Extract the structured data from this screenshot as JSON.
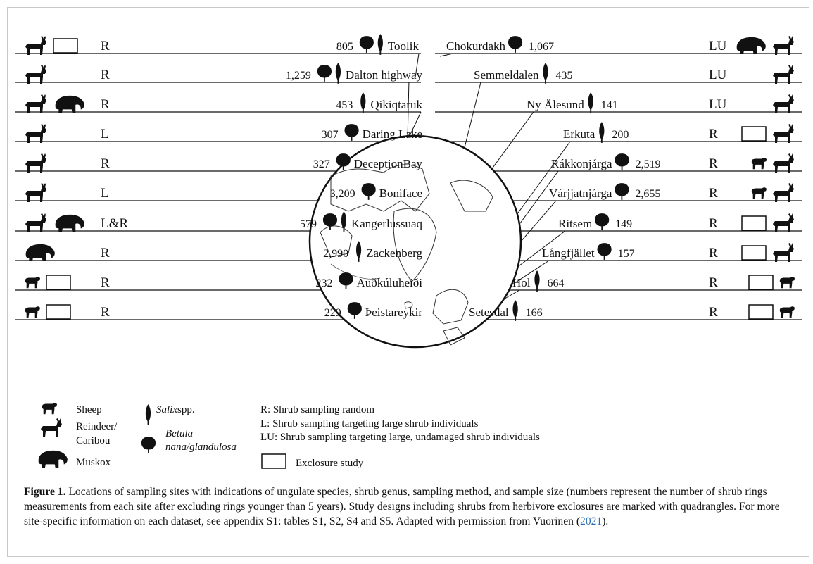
{
  "left_sites": [
    {
      "grazers": [
        "reindeer"
      ],
      "exclosure": true,
      "method": "R",
      "n": "805",
      "shrubs": [
        "betula",
        "salix"
      ],
      "name": "Toolik"
    },
    {
      "grazers": [
        "reindeer"
      ],
      "exclosure": false,
      "method": "R",
      "n": "1,259",
      "shrubs": [
        "betula",
        "salix"
      ],
      "name": "Dalton highway"
    },
    {
      "grazers": [
        "reindeer",
        "muskox"
      ],
      "exclosure": false,
      "method": "R",
      "n": "453",
      "shrubs": [
        "salix"
      ],
      "name": "Qikiqtaruk"
    },
    {
      "grazers": [
        "reindeer"
      ],
      "exclosure": false,
      "method": "L",
      "n": "307",
      "shrubs": [
        "betula"
      ],
      "name": "Daring Lake"
    },
    {
      "grazers": [
        "reindeer"
      ],
      "exclosure": false,
      "method": "R",
      "n": "327",
      "shrubs": [
        "betula"
      ],
      "name": "DeceptionBay"
    },
    {
      "grazers": [
        "reindeer"
      ],
      "exclosure": false,
      "method": "L",
      "n": "3,209",
      "shrubs": [
        "betula"
      ],
      "name": "Boniface"
    },
    {
      "grazers": [
        "reindeer",
        "muskox"
      ],
      "exclosure": false,
      "method": "L&R",
      "n": "579",
      "shrubs": [
        "betula",
        "salix"
      ],
      "name": "Kangerlussuaq"
    },
    {
      "grazers": [
        "muskox"
      ],
      "exclosure": false,
      "method": "R",
      "n": "2,990",
      "shrubs": [
        "salix"
      ],
      "name": "Zackenberg"
    },
    {
      "grazers": [
        "sheep"
      ],
      "exclosure": true,
      "method": "R",
      "n": "232",
      "shrubs": [
        "betula"
      ],
      "name": "Auðkúluheiði"
    },
    {
      "grazers": [
        "sheep"
      ],
      "exclosure": true,
      "method": "R",
      "n": "229",
      "shrubs": [
        "betula"
      ],
      "name": "Þeistareykir"
    }
  ],
  "right_sites": [
    {
      "name": "Chokurdakh",
      "shrubs": [
        "betula"
      ],
      "n": "1,067",
      "method": "LU",
      "grazers": [
        "muskox",
        "reindeer"
      ],
      "exclosure": false
    },
    {
      "name": "Semmeldalen",
      "shrubs": [
        "salix"
      ],
      "n": "435",
      "method": "LU",
      "grazers": [
        "reindeer"
      ],
      "exclosure": false
    },
    {
      "name": "Ny Ålesund",
      "shrubs": [
        "salix"
      ],
      "n": "141",
      "method": "LU",
      "grazers": [
        "reindeer"
      ],
      "exclosure": false
    },
    {
      "name": "Erkuta",
      "shrubs": [
        "salix"
      ],
      "n": "200",
      "method": "R",
      "grazers": [
        "reindeer"
      ],
      "exclosure": true
    },
    {
      "name": "Rákkonjárga",
      "shrubs": [
        "betula"
      ],
      "n": "2,519",
      "method": "R",
      "grazers": [
        "sheep",
        "reindeer"
      ],
      "exclosure": false
    },
    {
      "name": "Várjjatnjárga",
      "shrubs": [
        "betula"
      ],
      "n": "2,655",
      "method": "R",
      "grazers": [
        "sheep",
        "reindeer"
      ],
      "exclosure": false
    },
    {
      "name": "Ritsem",
      "shrubs": [
        "betula"
      ],
      "n": "149",
      "method": "R",
      "grazers": [
        "reindeer"
      ],
      "exclosure": true
    },
    {
      "name": "Långfjället",
      "shrubs": [
        "betula"
      ],
      "n": "157",
      "method": "R",
      "grazers": [
        "reindeer"
      ],
      "exclosure": true
    },
    {
      "name": "Hol",
      "shrubs": [
        "salix"
      ],
      "n": "664",
      "method": "R",
      "grazers": [
        "sheep"
      ],
      "exclosure": true
    },
    {
      "name": "Setesdal",
      "shrubs": [
        "salix"
      ],
      "n": "166",
      "method": "R",
      "grazers": [
        "sheep"
      ],
      "exclosure": true
    }
  ],
  "legend": {
    "sheep": "Sheep",
    "reindeer_1": "Reindeer/",
    "reindeer_2": "Caribou",
    "muskox": "Muskox",
    "salix_1": "Salix",
    "salix_2": " spp.",
    "betula_1": "Betula",
    "betula_2": "nana/glandulosa",
    "method_r": "R:   Shrub sampling random",
    "method_l": "L:   Shrub sampling targeting large shrub individuals",
    "method_lu": "LU: Shrub sampling targeting large, undamaged shrub individuals",
    "exclosure": "Exclosure study"
  },
  "caption": {
    "label": "Figure 1.",
    "text_1": " Locations of sampling sites with indications of ungulate species, shrub genus, sampling method, and sample size (numbers represent the number of shrub rings measurements from each site after excluding rings younger than 5 years). Study designs including shrubs from herbivore exclosures are marked with quadrangles. For more site-specific information on each dataset, see appendix S1: tables S1, S2, S4 and S5. Adapted with permission from Vuorinen (",
    "ref": "2021",
    "text_2": ")."
  }
}
